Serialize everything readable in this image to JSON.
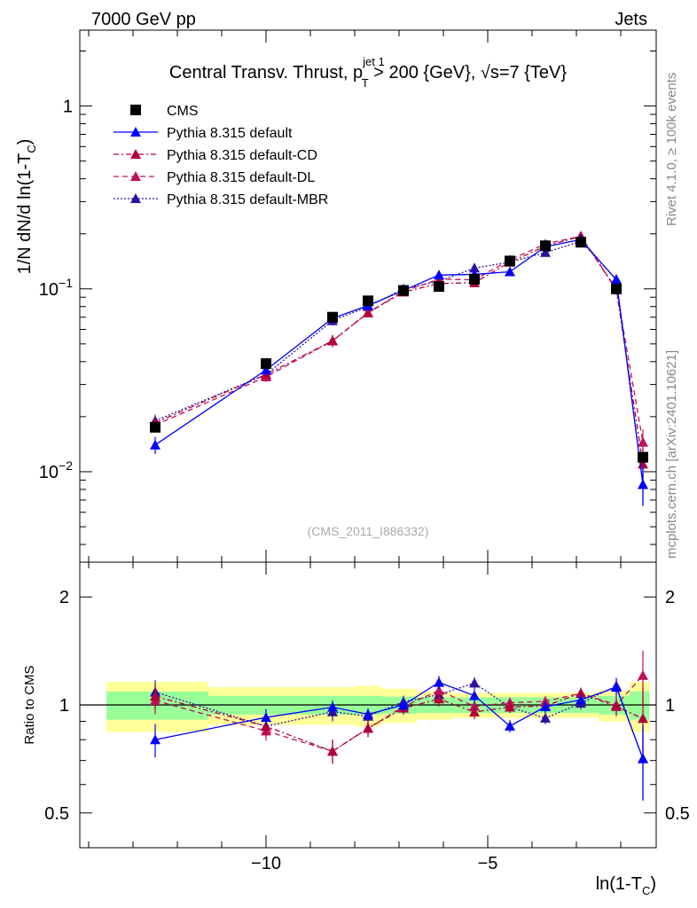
{
  "header": {
    "left": "7000 GeV pp",
    "right": "Jets"
  },
  "side_text": {
    "rivet": "Rivet 4.1.0, ≥ 100k events",
    "mcplots": "mcplots.cern.ch [arXiv:2401.10621]"
  },
  "title": {
    "main": "Central Transv. Thrust, p",
    "sup": "jet 1",
    "sub": "T",
    "tail": " > 200 {GeV}, √s=7 {TeV}"
  },
  "ylabel_main": {
    "prefix": "1/N    dN/d ln(1-T",
    "sub": "C",
    "suffix": ")"
  },
  "ylabel_ratio": "Ratio to CMS",
  "xlabel": {
    "prefix": "ln(1-T",
    "sub": "C",
    "suffix": ")"
  },
  "watermark": "(CMS_2011_I886332)",
  "tick_labels": {
    "main_y": [
      {
        "base": "10",
        "exp": "−2",
        "value": 0.01
      },
      {
        "base": "10",
        "exp": "−1",
        "value": 0.1
      },
      {
        "base": "1",
        "exp": "",
        "value": 1
      }
    ],
    "ratio_y": [
      "0.5",
      "1",
      "2"
    ],
    "x": [
      "−10",
      "−5"
    ]
  },
  "legend": [
    {
      "label": "CMS",
      "color": "#000000",
      "marker": "square",
      "dash": "none"
    },
    {
      "label": "Pythia 8.315 default",
      "color": "#0000ff",
      "marker": "triangle",
      "dash": "solid"
    },
    {
      "label": "Pythia 8.315 default-CD",
      "color": "#b0003c",
      "marker": "triangle",
      "dash": "dashdot"
    },
    {
      "label": "Pythia 8.315 default-DL",
      "color": "#c0105a",
      "marker": "triangle",
      "dash": "dash"
    },
    {
      "label": "Pythia 8.315 default-MBR",
      "color": "#3010a0",
      "marker": "triangle",
      "dash": "dot"
    }
  ],
  "chart_data": {
    "type": "line",
    "x_range": [
      -14.2,
      -1.2
    ],
    "main_y_range_log": [
      0.0032,
      2.6
    ],
    "ratio_y_range_log": [
      0.4,
      2.5
    ],
    "x_bin_edges": [
      -13.6,
      -11.3,
      -9.0,
      -8.0,
      -7.4,
      -6.6,
      -5.8,
      -4.7,
      -4.0,
      -3.3,
      -2.5,
      -1.8,
      -1.35
    ],
    "x": [
      -12.5,
      -10.0,
      -8.5,
      -7.7,
      -6.9,
      -6.1,
      -5.3,
      -4.5,
      -3.7,
      -2.9,
      -2.1,
      -1.5
    ],
    "series": [
      {
        "name": "CMS",
        "values": [
          0.0175,
          0.039,
          0.07,
          0.086,
          0.098,
          0.103,
          0.113,
          0.142,
          0.172,
          0.18,
          0.1,
          0.012
        ],
        "errors": [
          0.001,
          0.002,
          0.003,
          0.003,
          0.003,
          0.003,
          0.003,
          0.004,
          0.005,
          0.005,
          0.004,
          0.0008
        ]
      },
      {
        "name": "Pythia 8.315 default",
        "values": [
          0.014,
          0.036,
          0.069,
          0.081,
          0.098,
          0.119,
          0.12,
          0.124,
          0.17,
          0.186,
          0.112,
          0.0085
        ],
        "errors": [
          0.0015,
          0.002,
          0.003,
          0.003,
          0.004,
          0.005,
          0.005,
          0.005,
          0.006,
          0.007,
          0.006,
          0.002
        ]
      },
      {
        "name": "Pythia 8.315 default-CD",
        "values": [
          0.0185,
          0.034,
          0.052,
          0.074,
          0.096,
          0.107,
          0.108,
          0.14,
          0.171,
          0.194,
          0.099,
          0.011
        ],
        "errors": [
          0.0015,
          0.002,
          0.004,
          0.004,
          0.004,
          0.005,
          0.005,
          0.005,
          0.006,
          0.007,
          0.006,
          0.0025
        ]
      },
      {
        "name": "Pythia 8.315 default-DL",
        "values": [
          0.018,
          0.033,
          0.052,
          0.074,
          0.097,
          0.113,
          0.112,
          0.144,
          0.176,
          0.194,
          0.1,
          0.0145
        ],
        "errors": [
          0.0015,
          0.002,
          0.004,
          0.004,
          0.004,
          0.005,
          0.005,
          0.005,
          0.006,
          0.007,
          0.006,
          0.0025
        ]
      },
      {
        "name": "Pythia 8.315 default-MBR",
        "values": [
          0.019,
          0.034,
          0.067,
          0.08,
          0.1,
          0.11,
          0.13,
          0.14,
          0.158,
          0.182,
          0.113,
          0.0085
        ],
        "errors": [
          0.0015,
          0.002,
          0.004,
          0.004,
          0.004,
          0.005,
          0.005,
          0.005,
          0.006,
          0.007,
          0.006,
          0.002
        ]
      }
    ],
    "ratio_bands": {
      "green_half_width": [
        0.09,
        0.06,
        0.06,
        0.06,
        0.055,
        0.05,
        0.05,
        0.05,
        0.05,
        0.05,
        0.06,
        0.09
      ],
      "yellow_half_width": [
        0.16,
        0.12,
        0.12,
        0.13,
        0.11,
        0.09,
        0.08,
        0.08,
        0.08,
        0.08,
        0.1,
        0.16
      ]
    }
  }
}
